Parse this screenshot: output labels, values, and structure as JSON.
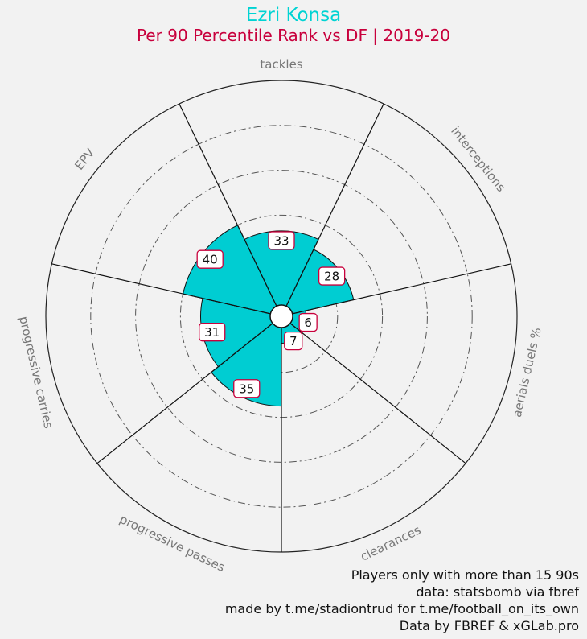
{
  "title": "Ezri Konsa",
  "subtitle": "Per 90 Percentile Rank vs DF | 2019-20",
  "colors": {
    "background": "#f2f2f2",
    "title": "#00d3d3",
    "subtitle": "#c8003c",
    "fill": "#00cdd2",
    "label_border": "#c8003c",
    "axis_label": "#777777"
  },
  "chart_data": {
    "type": "radar",
    "categories": [
      "tackles",
      "interceptions",
      "aerials duels %",
      "clearances",
      "progressive passes",
      "progressive carries",
      "EPV"
    ],
    "values": [
      33,
      28,
      6,
      7,
      35,
      31,
      40
    ],
    "value_labels": [
      "33",
      "28",
      "6",
      "7",
      "35",
      "31",
      "40"
    ],
    "range": [
      0,
      100
    ],
    "grid": true
  },
  "footer": [
    "Players only with more than 15 90s",
    "data: statsbomb via fbref",
    "made by t.me/stadiontrud for t.me/football_on_its_own",
    "Data by FBREF & xGLab.pro"
  ]
}
